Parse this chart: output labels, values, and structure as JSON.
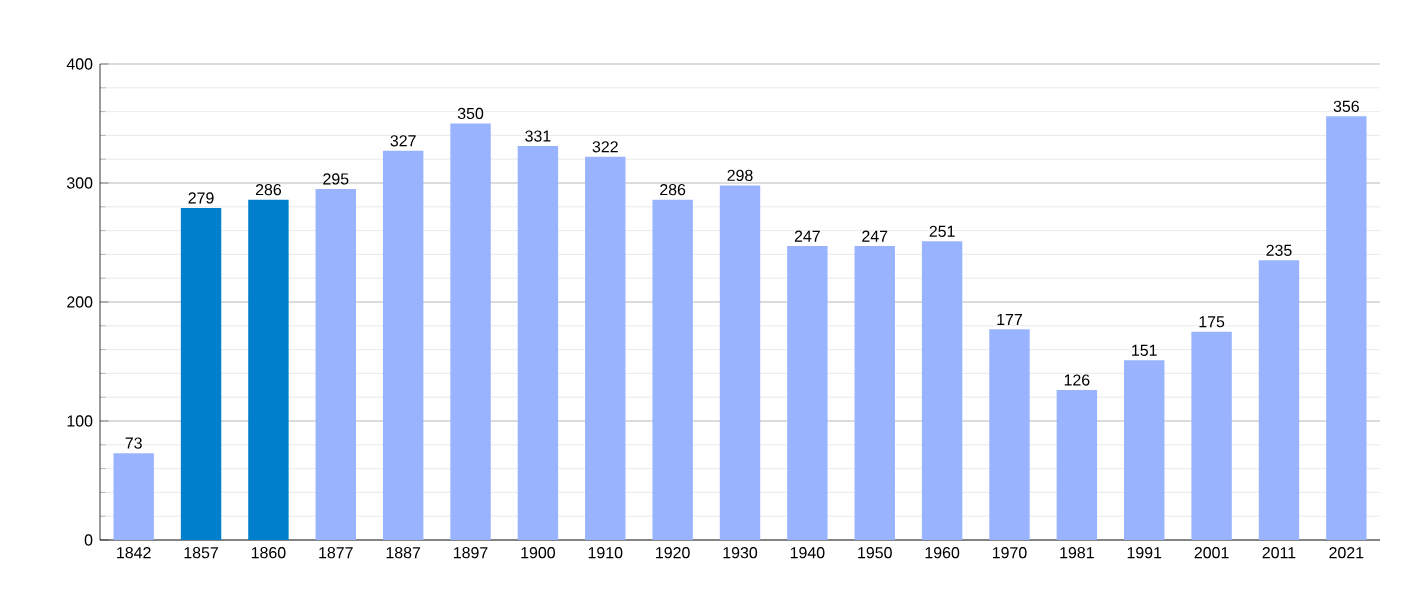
{
  "chart_data": {
    "type": "bar",
    "categories": [
      "1842",
      "1857",
      "1860",
      "1877",
      "1887",
      "1897",
      "1900",
      "1910",
      "1920",
      "1930",
      "1940",
      "1950",
      "1960",
      "1970",
      "1981",
      "1991",
      "2001",
      "2011",
      "2021"
    ],
    "values": [
      73,
      279,
      286,
      295,
      327,
      350,
      331,
      322,
      286,
      298,
      247,
      247,
      251,
      177,
      126,
      151,
      175,
      235,
      356
    ],
    "colors": [
      "#99b3ff",
      "#0080cc",
      "#0080cc",
      "#99b3ff",
      "#99b3ff",
      "#99b3ff",
      "#99b3ff",
      "#99b3ff",
      "#99b3ff",
      "#99b3ff",
      "#99b3ff",
      "#99b3ff",
      "#99b3ff",
      "#99b3ff",
      "#99b3ff",
      "#99b3ff",
      "#99b3ff",
      "#99b3ff",
      "#99b3ff"
    ],
    "ylim": [
      0,
      400
    ],
    "yticks": [
      0,
      100,
      200,
      300,
      400
    ],
    "grid": "y",
    "data_labels": true
  }
}
